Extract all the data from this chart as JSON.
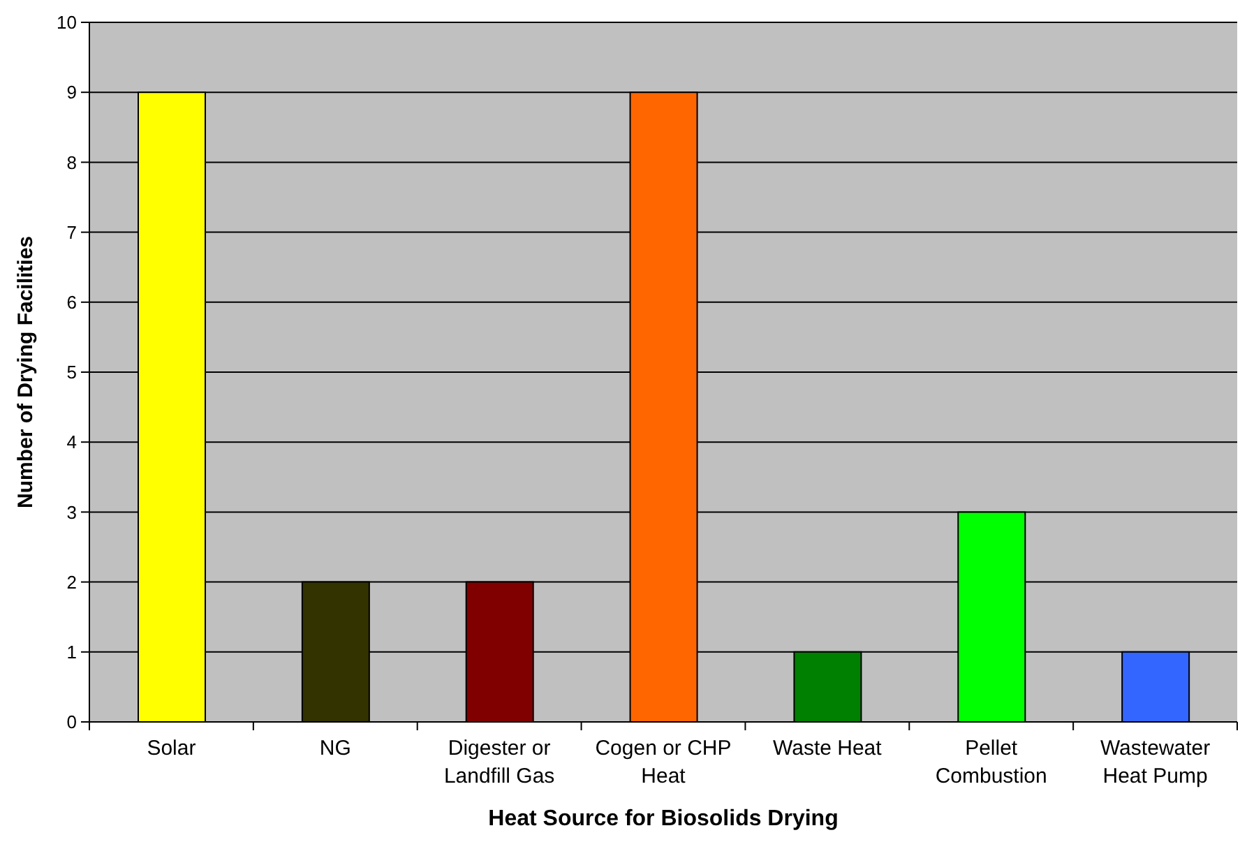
{
  "chart_data": {
    "type": "bar",
    "xlabel": "Heat Source for Biosolids Drying",
    "ylabel": "Number of Drying Facilities",
    "categories": [
      "Solar",
      "NG",
      "Digester or Landfill Gas",
      "Cogen or CHP Heat",
      "Waste Heat",
      "Pellet Combustion",
      "Wastewater Heat Pump"
    ],
    "values": [
      9,
      2,
      2,
      9,
      1,
      3,
      1
    ],
    "colors": [
      "#ffff00",
      "#333300",
      "#800000",
      "#ff6600",
      "#008000",
      "#00ff00",
      "#3366ff"
    ],
    "ylim": [
      0,
      10
    ],
    "yticks": [
      0,
      1,
      2,
      3,
      4,
      5,
      6,
      7,
      8,
      9,
      10
    ],
    "grid": "y"
  }
}
